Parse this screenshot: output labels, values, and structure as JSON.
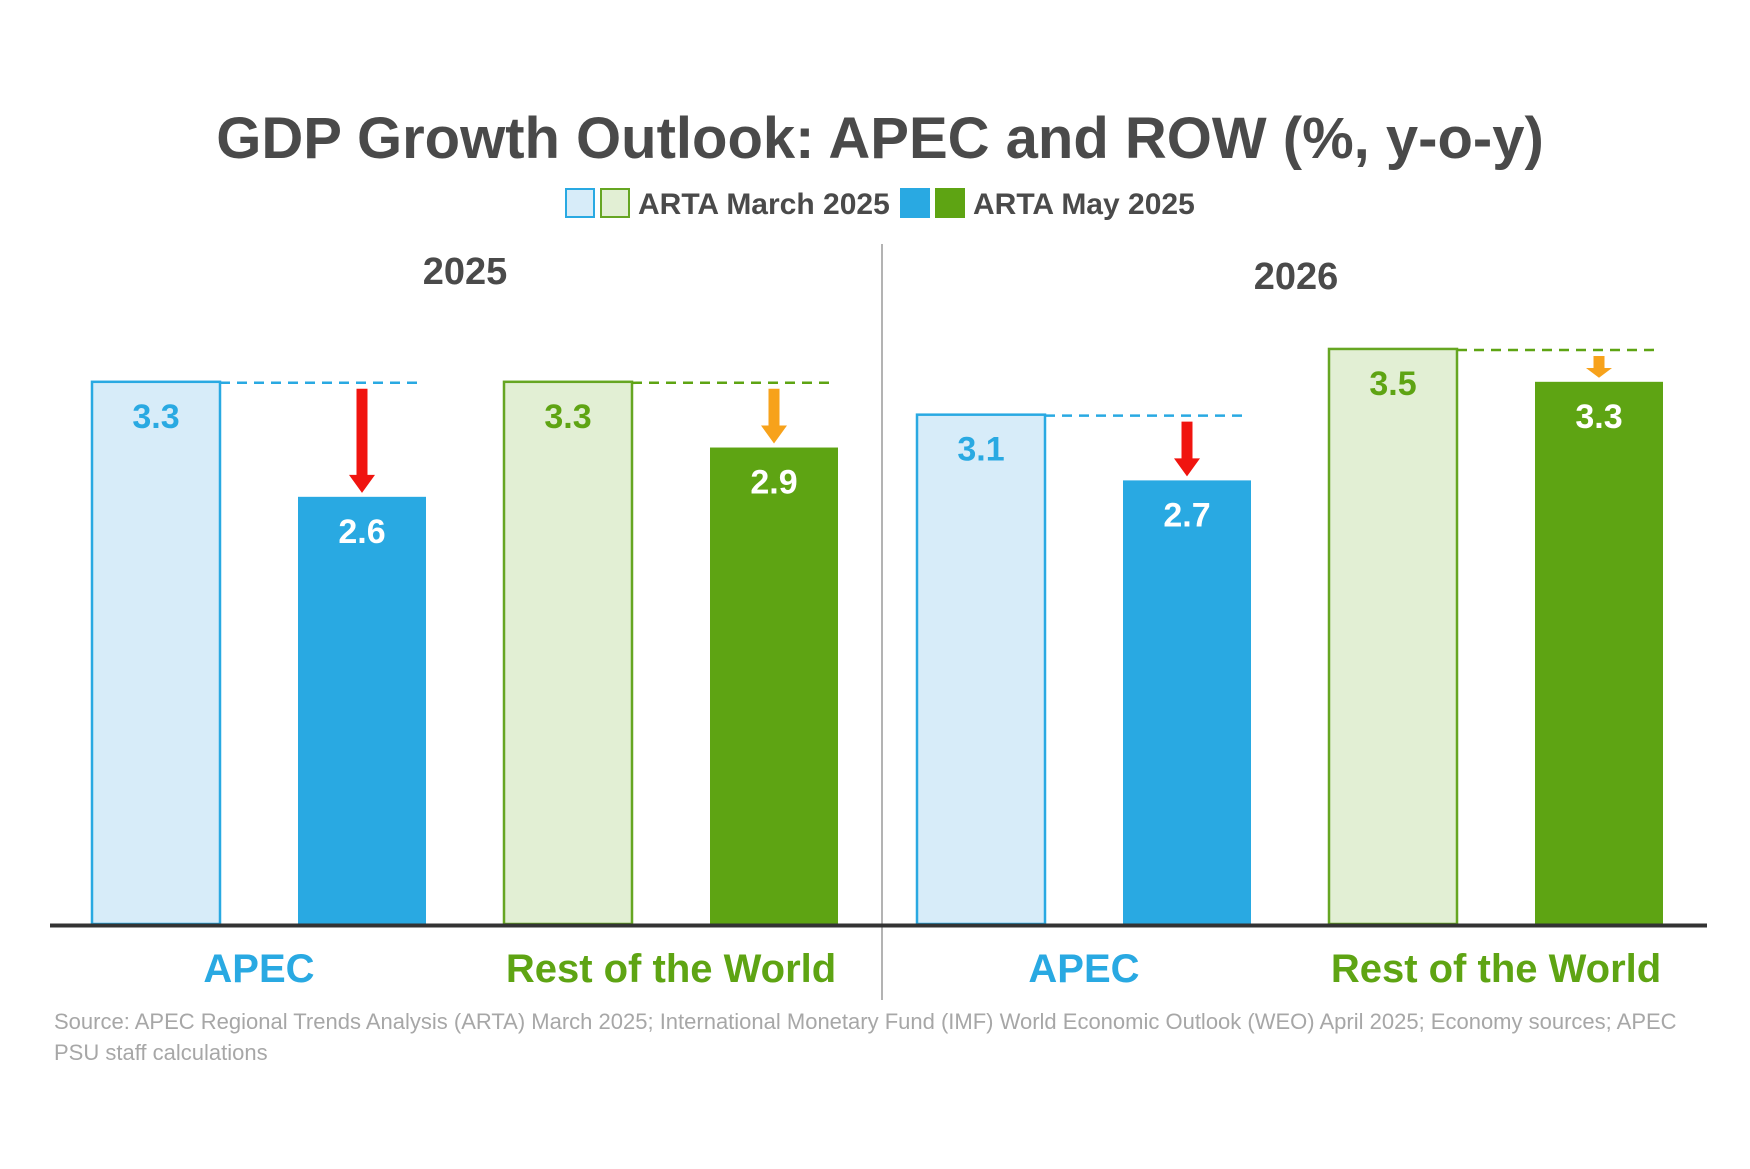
{
  "chart_data": {
    "type": "bar",
    "title": "GDP Growth Outlook: APEC and ROW (%, y-o-y)",
    "legend": {
      "placement": "top-center",
      "items": [
        {
          "label": "ARTA March 2025",
          "swatches": [
            "#d7ecf9",
            "#e2efd4"
          ],
          "borders": [
            "#29a9e2",
            "#66a622"
          ]
        },
        {
          "label": "ARTA May 2025",
          "swatches": [
            "#29a9e2",
            "#5ea413"
          ],
          "borders": [
            "#29a9e2",
            "#5ea413"
          ]
        }
      ]
    },
    "ylim": [
      0,
      3.5
    ],
    "grid": false,
    "panels": [
      {
        "year": "2025",
        "groups": [
          {
            "category": "APEC",
            "color": "#29a9e2",
            "march": 3.3,
            "may": 2.6,
            "march_label": "3.3",
            "may_label": "2.6",
            "arrow_color": "#f0140f"
          },
          {
            "category": "Rest of the World",
            "color": "#5ea413",
            "march": 3.3,
            "may": 2.9,
            "march_label": "3.3",
            "may_label": "2.9",
            "arrow_color": "#f7a21b"
          }
        ]
      },
      {
        "year": "2026",
        "groups": [
          {
            "category": "APEC",
            "color": "#29a9e2",
            "march": 3.1,
            "may": 2.7,
            "march_label": "3.1",
            "may_label": "2.7",
            "arrow_color": "#f0140f"
          },
          {
            "category": "Rest of the World",
            "color": "#5ea413",
            "march": 3.5,
            "may": 3.3,
            "march_label": "3.5",
            "may_label": "3.3",
            "arrow_color": "#f7a21b"
          }
        ]
      }
    ],
    "colors": {
      "apec": "#29a9e2",
      "apec_light": "#d7ecf9",
      "row": "#5ea413",
      "row_light": "#e2efd4",
      "row_light_border": "#66a622",
      "axis": "#333333",
      "divider": "#9a9a9a"
    }
  },
  "source_note": "Source: APEC Regional Trends Analysis (ARTA) March 2025; International Monetary Fund (IMF) World Economic Outlook (WEO) April 2025; Economy sources; APEC PSU staff calculations"
}
